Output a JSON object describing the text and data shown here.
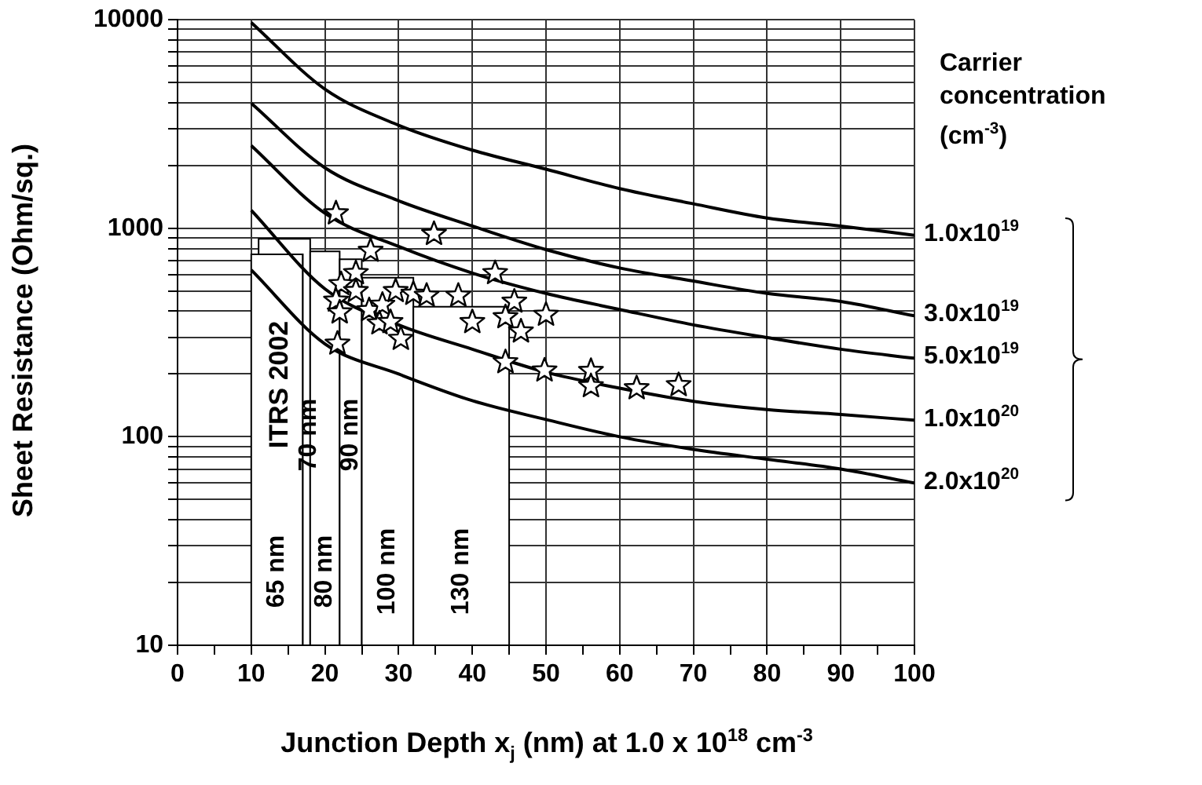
{
  "chart_data": {
    "type": "line",
    "xlabel": "Junction Depth x$_{j}$ (nm) at 1.0 x 10$^{18}$ cm$^{-3}$",
    "ylabel": "Sheet Resistance (Ohm/sq.)",
    "legend_title": "Carrier concentration (cm$^{-3}$)",
    "xlim": [
      0,
      100
    ],
    "xticks": [
      0,
      {
        "value": 5,
        "label": null
      },
      10,
      {
        "value": 15,
        "label": null
      },
      20,
      {
        "value": 25,
        "label": null
      },
      30,
      {
        "value": 35,
        "label": null
      },
      40,
      {
        "value": 45,
        "label": null
      },
      50,
      {
        "value": 55,
        "label": null
      },
      60,
      {
        "value": 65,
        "label": null
      },
      70,
      {
        "value": 75,
        "label": null
      },
      80,
      {
        "value": 85,
        "label": null
      },
      90,
      {
        "value": 95,
        "label": null
      },
      100
    ],
    "ylim": [
      10,
      10000
    ],
    "yticks": [
      10,
      {
        "value": 20,
        "label": null
      },
      {
        "value": 30,
        "label": null
      },
      {
        "value": 40,
        "label": null
      },
      {
        "value": 50,
        "label": null
      },
      {
        "value": 60,
        "label": null
      },
      {
        "value": 70,
        "label": null
      },
      {
        "value": 80,
        "label": null
      },
      {
        "value": 90,
        "label": null
      },
      100,
      {
        "value": 200,
        "label": null
      },
      {
        "value": 300,
        "label": null
      },
      {
        "value": 400,
        "label": null
      },
      {
        "value": 500,
        "label": null
      },
      {
        "value": 600,
        "label": null
      },
      {
        "value": 700,
        "label": null
      },
      {
        "value": 800,
        "label": null
      },
      {
        "value": 900,
        "label": null
      },
      1000,
      {
        "value": 2000,
        "label": null
      },
      {
        "value": 3000,
        "label": null
      },
      {
        "value": 4000,
        "label": null
      },
      {
        "value": 5000,
        "label": null
      },
      {
        "value": 6000,
        "label": null
      },
      {
        "value": 7000,
        "label": null
      },
      {
        "value": 8000,
        "label": null
      },
      {
        "value": 9000,
        "label": null
      },
      10000
    ],
    "log": "y",
    "grid": true,
    "x": [
      10,
      20,
      30,
      40,
      50,
      60,
      70,
      80,
      90,
      100
    ],
    "series": [
      {
        "type": "area",
        "name": "65 nm",
        "color": "#ffffff",
        "x": [
          10,
          10,
          17,
          17
        ],
        "values": [
          10,
          750,
          750,
          10
        ]
      },
      {
        "type": "area",
        "name": "70 nm",
        "color": "#ffffff",
        "x": [
          11,
          11,
          18,
          18,
          17,
          17
        ],
        "values": [
          750,
          890,
          890,
          10,
          10,
          750
        ]
      },
      {
        "type": "area",
        "name": "80 nm",
        "color": "#ffffff",
        "x": [
          18,
          18,
          22,
          22
        ],
        "values": [
          10,
          775,
          775,
          10
        ]
      },
      {
        "type": "area",
        "name": "90 nm",
        "color": "#ffffff",
        "x": [
          22,
          22,
          25,
          25
        ],
        "values": [
          10,
          710,
          710,
          10
        ]
      },
      {
        "type": "area",
        "name": "100 nm",
        "color": "#ffffff",
        "x": [
          25,
          25,
          32,
          32
        ],
        "values": [
          10,
          580,
          580,
          10
        ]
      },
      {
        "type": "area",
        "name": "130 nm",
        "color": "#ffffff",
        "x": [
          32,
          32,
          45,
          45
        ],
        "values": [
          10,
          420,
          420,
          10
        ]
      },
      {
        "name": "1.0x10$^{19}$",
        "color": "#000000",
        "line_style": "solid",
        "values": [
          9700,
          4650,
          3120,
          2370,
          1920,
          1550,
          1310,
          1120,
          1025,
          925
        ]
      },
      {
        "name": "3.0x10$^{19}$",
        "color": "#000000",
        "line_style": "solid",
        "values": [
          3980,
          1950,
          1355,
          1025,
          790,
          645,
          558,
          487,
          446,
          380
        ]
      },
      {
        "name": "5.0x10$^{19}$",
        "color": "#000000",
        "line_style": "solid",
        "values": [
          2490,
          1180,
          818,
          610,
          487,
          408,
          344,
          299,
          263,
          238
        ]
      },
      {
        "name": "1.0x10$^{20}$",
        "color": "#000000",
        "line_style": "solid",
        "values": [
          1220,
          512,
          344,
          263,
          204,
          171,
          148,
          135,
          128,
          120
        ]
      },
      {
        "name": "2.0x10$^{20}$",
        "color": "#000000",
        "line_style": "solid",
        "values": [
          631,
          279,
          200,
          149,
          121,
          100,
          87,
          78,
          70,
          60
        ]
      },
      {
        "type": "scatter",
        "color": "#000000",
        "marker": "star",
        "x": [
          21.5,
          34.8,
          26.2,
          24.2,
          22.2,
          24.2,
          21.5,
          22,
          26,
          27.8,
          29.6,
          32,
          33.8,
          38.1,
          27.4,
          28.9,
          30.3,
          21.7,
          43.1,
          40,
          45.7,
          44.5,
          46.6,
          50,
          44.5,
          49.8,
          56.1,
          56.1,
          62.3,
          68
        ],
        "values": [
          1180,
          940,
          780,
          610,
          540,
          500,
          450,
          395,
          405,
          430,
          500,
          485,
          475,
          475,
          350,
          355,
          295,
          280,
          610,
          355,
          445,
          375,
          320,
          385,
          228,
          208,
          207,
          175,
          171,
          177
        ]
      }
    ],
    "annotations": [
      "ITRS 2002"
    ]
  }
}
